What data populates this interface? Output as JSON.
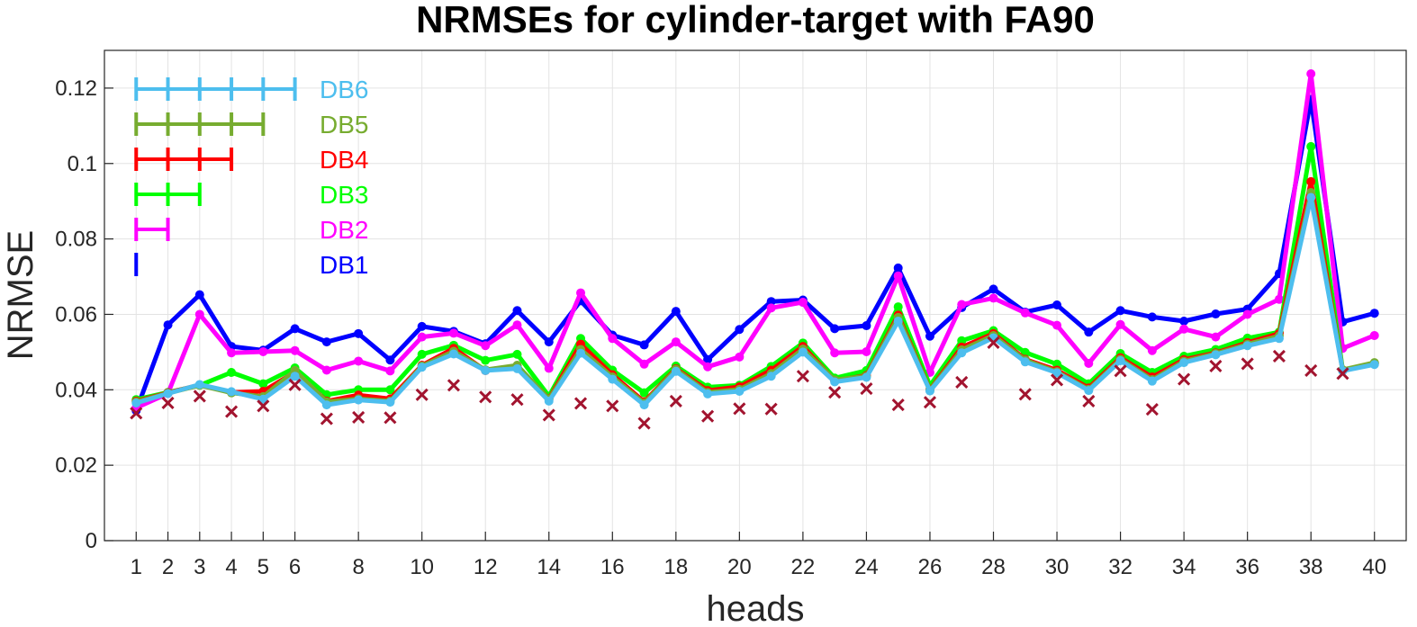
{
  "chart_data": {
    "type": "line",
    "title": "NRMSEs for cylinder-target with FA90",
    "xlabel": "heads",
    "ylabel": "NRMSE",
    "xlim": [
      0,
      41
    ],
    "ylim": [
      0,
      0.13
    ],
    "xticks": [
      1,
      2,
      3,
      4,
      5,
      6,
      8,
      10,
      12,
      14,
      16,
      18,
      20,
      22,
      24,
      26,
      28,
      30,
      32,
      34,
      36,
      38,
      40
    ],
    "yticks": [
      0,
      0.02,
      0.04,
      0.06,
      0.08,
      0.1,
      0.12
    ],
    "ytick_labels": [
      "0",
      "0.02",
      "0.04",
      "0.06",
      "0.08",
      "0.1",
      "0.12"
    ],
    "grid": true,
    "legend_position": "top-left",
    "x": [
      1,
      2,
      3,
      4,
      5,
      6,
      7,
      8,
      9,
      10,
      11,
      12,
      13,
      14,
      15,
      16,
      17,
      18,
      19,
      20,
      21,
      22,
      23,
      24,
      25,
      26,
      27,
      28,
      29,
      30,
      31,
      32,
      33,
      34,
      35,
      36,
      37,
      38,
      39,
      40
    ],
    "series": [
      {
        "name": "DB1",
        "color": "#0000ff",
        "values": [
          0.0345,
          0.0572,
          0.0652,
          0.0515,
          0.0505,
          0.0562,
          0.0527,
          0.0549,
          0.0479,
          0.0568,
          0.0555,
          0.0522,
          0.061,
          0.0527,
          0.0636,
          0.0545,
          0.0519,
          0.0608,
          0.048,
          0.056,
          0.0634,
          0.0638,
          0.0562,
          0.057,
          0.0723,
          0.0542,
          0.0618,
          0.0667,
          0.0606,
          0.0625,
          0.0553,
          0.061,
          0.0593,
          0.0582,
          0.0601,
          0.0614,
          0.0708,
          0.117,
          0.058,
          0.0603
        ]
      },
      {
        "name": "DB2",
        "color": "#ff00ff",
        "values": [
          0.0352,
          0.039,
          0.06,
          0.0498,
          0.0501,
          0.0504,
          0.0452,
          0.0476,
          0.045,
          0.054,
          0.055,
          0.0517,
          0.0572,
          0.0457,
          0.0657,
          0.0536,
          0.0468,
          0.0527,
          0.0461,
          0.0487,
          0.0617,
          0.0632,
          0.0498,
          0.0501,
          0.0702,
          0.0446,
          0.0626,
          0.0643,
          0.0604,
          0.0571,
          0.047,
          0.0573,
          0.0504,
          0.0561,
          0.054,
          0.06,
          0.064,
          0.1238,
          0.051,
          0.0544
        ]
      },
      {
        "name": "DB3",
        "color": "#00ff00",
        "values": [
          0.0374,
          0.0393,
          0.0412,
          0.0446,
          0.0416,
          0.0458,
          0.0387,
          0.04,
          0.04,
          0.0494,
          0.0518,
          0.0478,
          0.0494,
          0.0383,
          0.0536,
          0.0452,
          0.0392,
          0.0463,
          0.0407,
          0.0412,
          0.0462,
          0.0524,
          0.0431,
          0.0451,
          0.062,
          0.0411,
          0.053,
          0.0557,
          0.0499,
          0.0468,
          0.0416,
          0.0496,
          0.0446,
          0.0489,
          0.0507,
          0.0537,
          0.0553,
          0.1045,
          0.0452,
          0.0471
        ]
      },
      {
        "name": "DB4",
        "color": "#ff0000",
        "values": [
          0.037,
          0.0392,
          0.0413,
          0.0393,
          0.0396,
          0.0447,
          0.037,
          0.0386,
          0.0376,
          0.0465,
          0.051,
          0.0451,
          0.0463,
          0.0376,
          0.0521,
          0.044,
          0.0368,
          0.0456,
          0.0398,
          0.0408,
          0.0452,
          0.0515,
          0.0424,
          0.0438,
          0.0598,
          0.04,
          0.0513,
          0.0549,
          0.0481,
          0.0452,
          0.0405,
          0.0485,
          0.0434,
          0.048,
          0.0498,
          0.0525,
          0.0549,
          0.0952,
          0.0451,
          0.047
        ]
      },
      {
        "name": "DB5",
        "color": "#77ac30",
        "values": [
          0.0368,
          0.0391,
          0.0412,
          0.0392,
          0.0382,
          0.0451,
          0.0368,
          0.0376,
          0.037,
          0.0463,
          0.0502,
          0.0453,
          0.0465,
          0.0375,
          0.0507,
          0.0434,
          0.0365,
          0.0454,
          0.0393,
          0.0401,
          0.0443,
          0.0508,
          0.0426,
          0.0436,
          0.0592,
          0.0399,
          0.0506,
          0.0544,
          0.0479,
          0.0448,
          0.0401,
          0.0481,
          0.0427,
          0.0476,
          0.0496,
          0.0521,
          0.0543,
          0.0923,
          0.0453,
          0.0472
        ]
      },
      {
        "name": "DB6",
        "color": "#4dbeee",
        "values": [
          0.0365,
          0.039,
          0.0414,
          0.0395,
          0.0375,
          0.0436,
          0.036,
          0.0373,
          0.0367,
          0.046,
          0.0495,
          0.0451,
          0.0456,
          0.037,
          0.0497,
          0.0428,
          0.036,
          0.0449,
          0.0389,
          0.0396,
          0.0436,
          0.05,
          0.0421,
          0.0433,
          0.0582,
          0.0397,
          0.0498,
          0.0538,
          0.0474,
          0.0445,
          0.0398,
          0.0477,
          0.0423,
          0.0472,
          0.0493,
          0.0517,
          0.0536,
          0.091,
          0.045,
          0.0467
        ]
      },
      {
        "name": "",
        "color": "#a2142f",
        "marker": "x",
        "values": [
          0.0338,
          0.0365,
          0.0383,
          0.0342,
          0.0357,
          0.0413,
          0.0323,
          0.0327,
          0.0326,
          0.0387,
          0.0412,
          0.0381,
          0.0374,
          0.0333,
          0.0364,
          0.0357,
          0.0311,
          0.037,
          0.033,
          0.035,
          0.0349,
          0.0436,
          0.0393,
          0.0403,
          0.036,
          0.0367,
          0.042,
          0.0525,
          0.0388,
          0.0426,
          0.037,
          0.045,
          0.0348,
          0.0428,
          0.0463,
          0.0469,
          0.0489,
          0.0451,
          0.0443,
          null
        ]
      }
    ],
    "legend": [
      {
        "label": "DB6",
        "color": "#4dbeee",
        "span": 6
      },
      {
        "label": "DB5",
        "color": "#77ac30",
        "span": 5
      },
      {
        "label": "DB4",
        "color": "#ff0000",
        "span": 4
      },
      {
        "label": "DB3",
        "color": "#00ff00",
        "span": 3
      },
      {
        "label": "DB2",
        "color": "#ff00ff",
        "span": 2
      },
      {
        "label": "DB1",
        "color": "#0000ff",
        "span": 1
      }
    ]
  }
}
